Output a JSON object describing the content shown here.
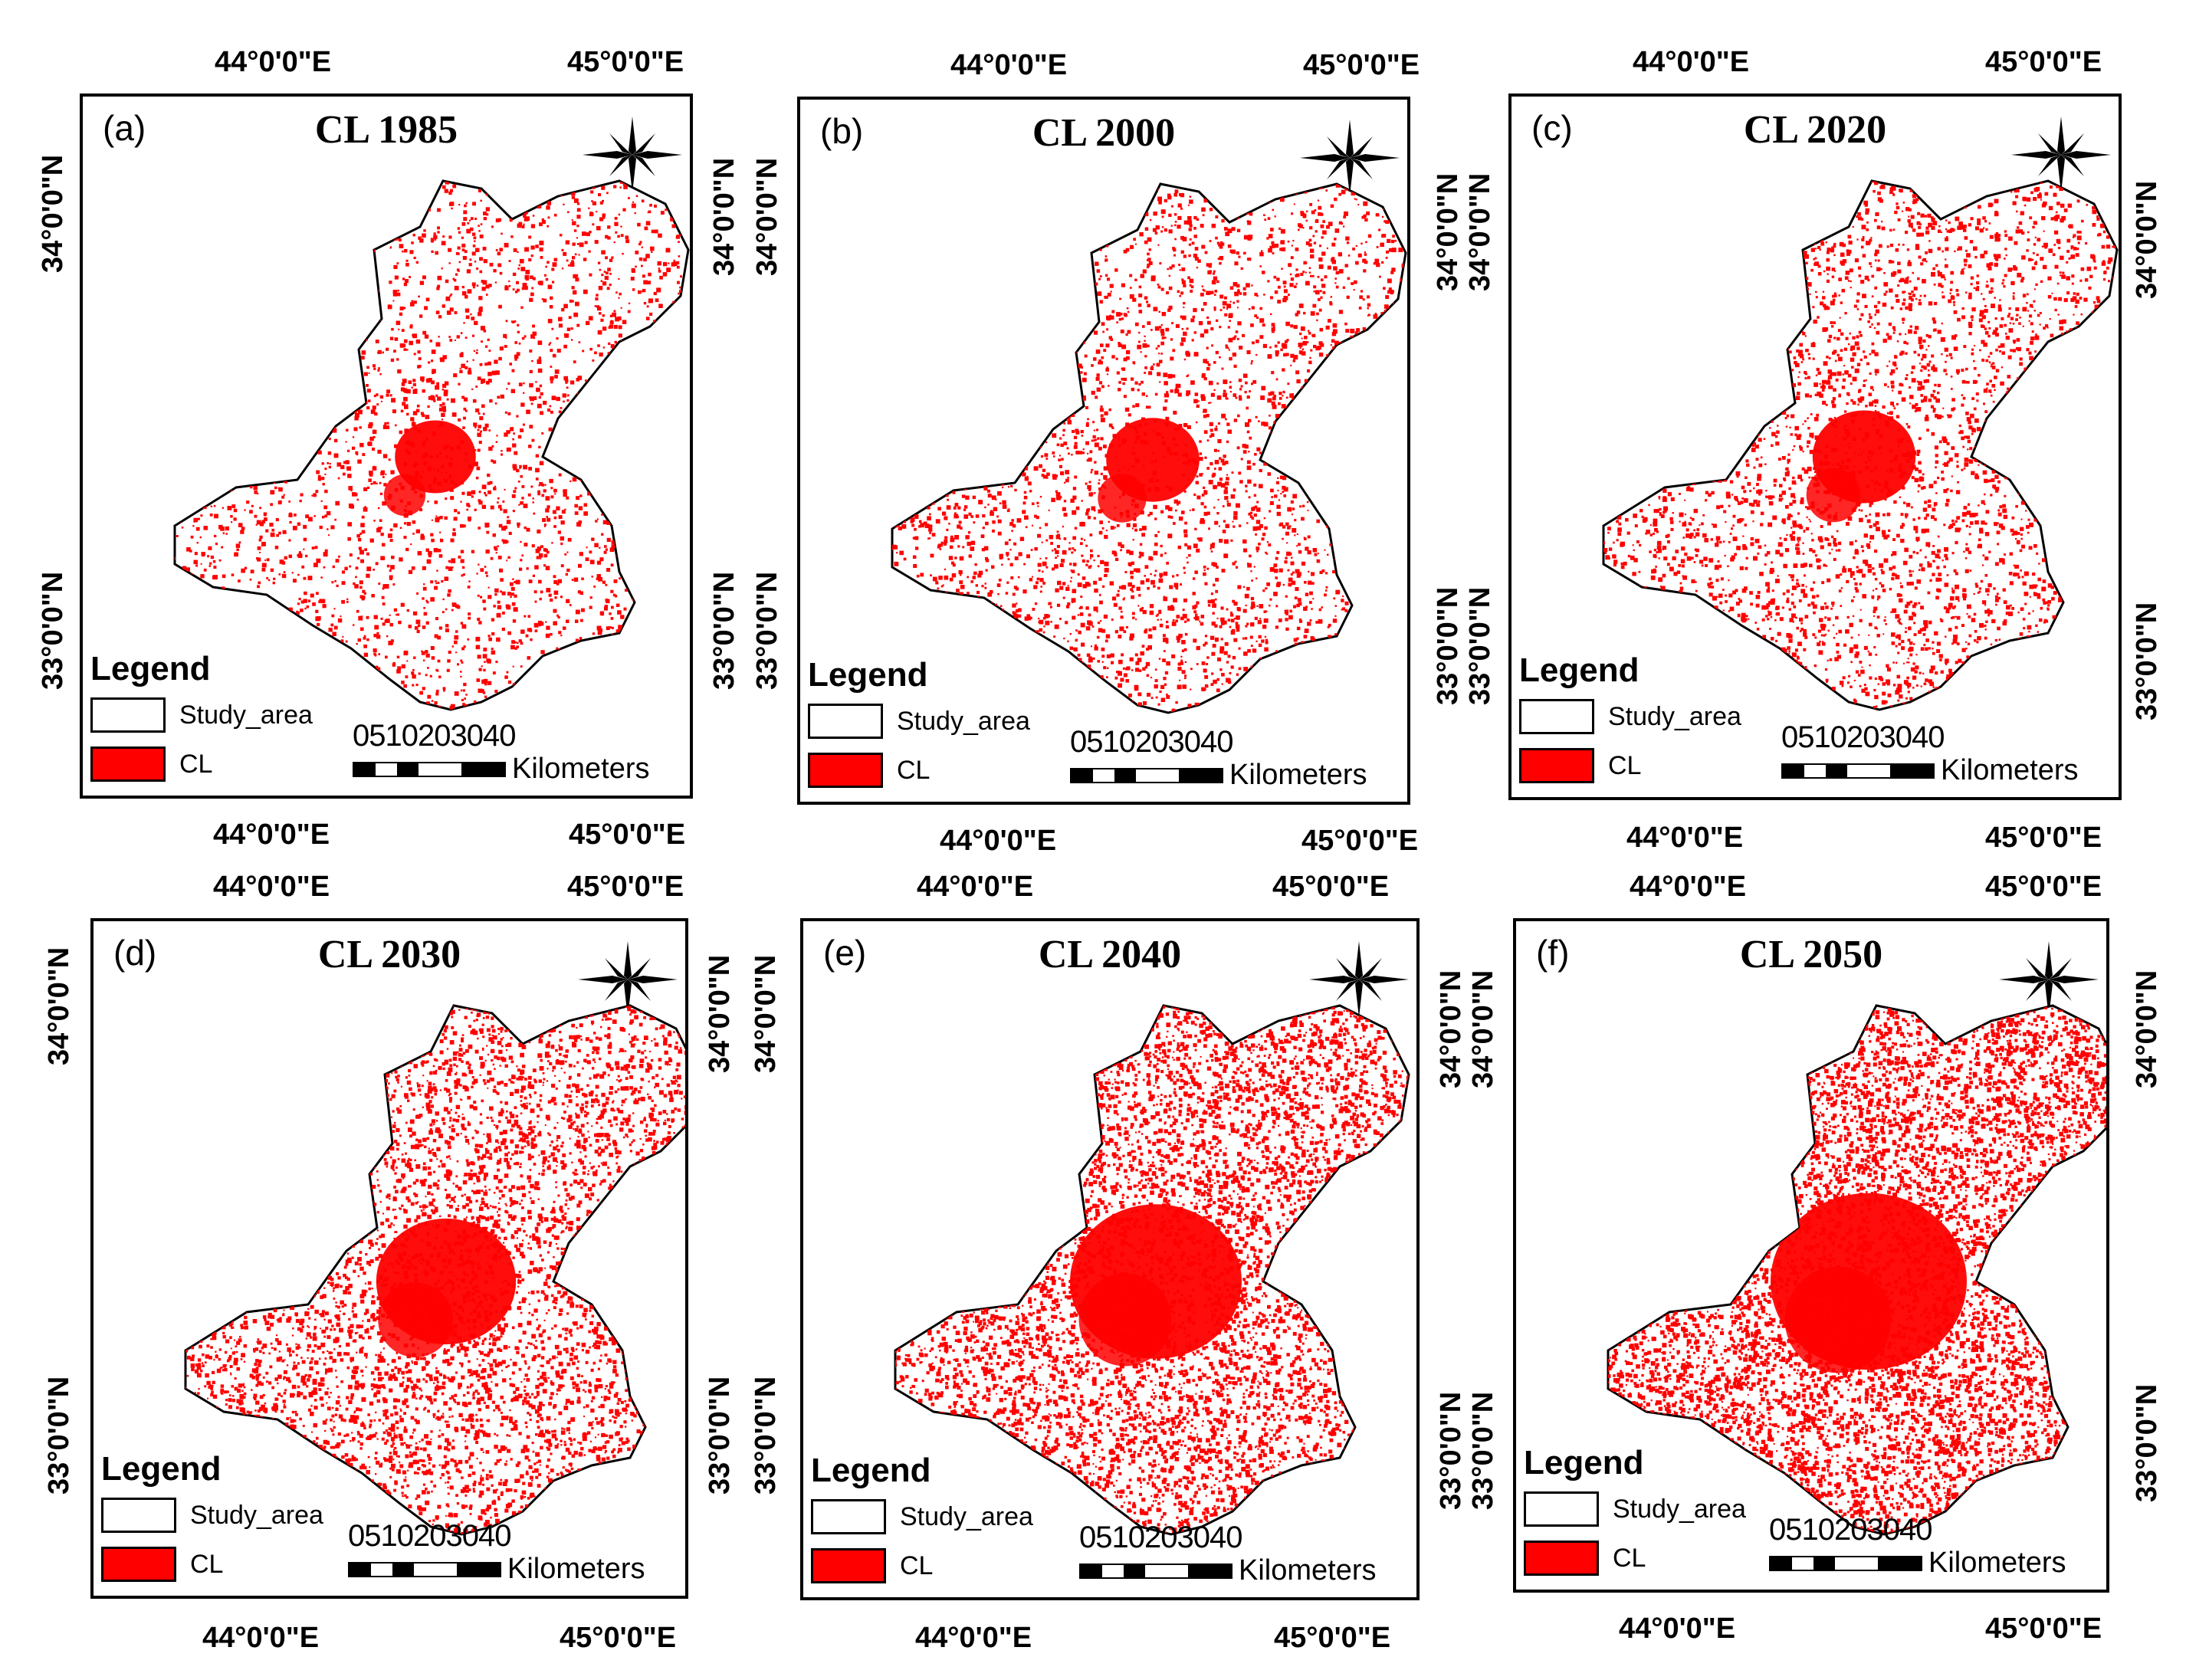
{
  "figure": {
    "legend_title": "Legend",
    "legend_items": [
      {
        "label": "Study_area",
        "color": "#ffffff"
      },
      {
        "label": "CL",
        "color": "#ff0000"
      }
    ],
    "scale_numbers": "0510203040",
    "scale_unit": "Kilometers",
    "lon_left": "44°0'0\"E",
    "lon_right": "45°0'0\"E",
    "lat_top": "34°0'0\"N",
    "lat_bottom": "33°0'0\"N",
    "cl_color": "#ff0000"
  },
  "panels": [
    {
      "label": "(a)",
      "title": "CL 1985",
      "density": 0.08
    },
    {
      "label": "(b)",
      "title": "CL 2000",
      "density": 0.13
    },
    {
      "label": "(c)",
      "title": "CL 2020",
      "density": 0.17
    },
    {
      "label": "(d)",
      "title": "CL 2030",
      "density": 0.32
    },
    {
      "label": "(e)",
      "title": "CL 2040",
      "density": 0.45
    },
    {
      "label": "(f)",
      "title": "CL 2050",
      "density": 0.55
    }
  ]
}
